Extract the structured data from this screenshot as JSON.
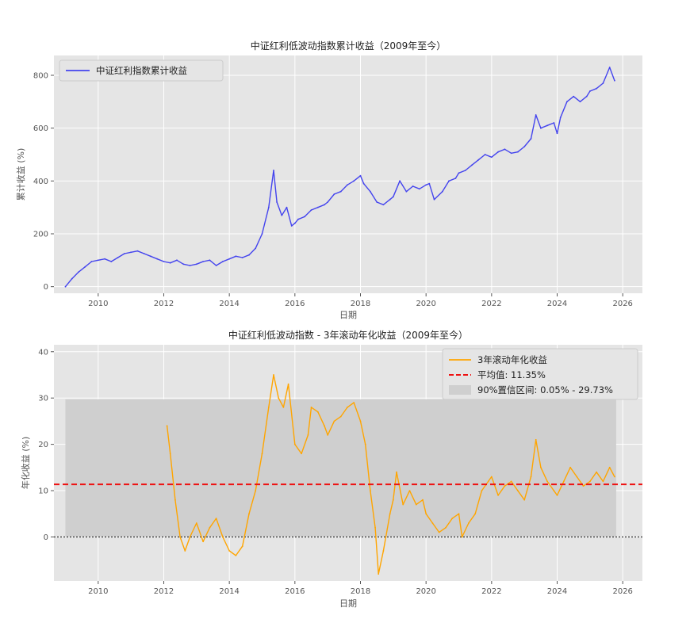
{
  "chart_data": [
    {
      "type": "line",
      "title": "中证红利低波动指数累计收益（2009年至今）",
      "xlabel": "日期",
      "ylabel": "累计收益 (%)",
      "xlim": [
        2008.65,
        2026.6
      ],
      "ylim": [
        -25,
        875
      ],
      "xticks": [
        2010,
        2012,
        2014,
        2016,
        2018,
        2020,
        2022,
        2024,
        2026
      ],
      "yticks": [
        0,
        200,
        400,
        600,
        800
      ],
      "grid": true,
      "legend_position": "top-left",
      "series": [
        {
          "name": "中证红利指数累计收益",
          "color": "#4444ee",
          "x": [
            2009.0,
            2009.2,
            2009.4,
            2009.6,
            2009.8,
            2010.0,
            2010.2,
            2010.4,
            2010.6,
            2010.8,
            2011.0,
            2011.2,
            2011.4,
            2011.6,
            2011.8,
            2012.0,
            2012.2,
            2012.4,
            2012.6,
            2012.8,
            2013.0,
            2013.2,
            2013.4,
            2013.6,
            2013.8,
            2014.0,
            2014.2,
            2014.4,
            2014.6,
            2014.8,
            2015.0,
            2015.2,
            2015.35,
            2015.45,
            2015.6,
            2015.75,
            2015.9,
            2016.0,
            2016.1,
            2016.3,
            2016.5,
            2016.7,
            2016.9,
            2017.0,
            2017.2,
            2017.4,
            2017.6,
            2017.8,
            2018.0,
            2018.1,
            2018.3,
            2018.5,
            2018.7,
            2018.9,
            2019.0,
            2019.2,
            2019.4,
            2019.6,
            2019.8,
            2020.0,
            2020.1,
            2020.25,
            2020.5,
            2020.7,
            2020.9,
            2021.0,
            2021.2,
            2021.4,
            2021.6,
            2021.8,
            2022.0,
            2022.2,
            2022.4,
            2022.6,
            2022.8,
            2023.0,
            2023.2,
            2023.35,
            2023.5,
            2023.7,
            2023.9,
            2024.0,
            2024.1,
            2024.3,
            2024.5,
            2024.7,
            2024.9,
            2025.0,
            2025.2,
            2025.4,
            2025.6,
            2025.75
          ],
          "values": [
            0,
            30,
            55,
            75,
            95,
            100,
            105,
            95,
            110,
            125,
            130,
            135,
            125,
            115,
            105,
            95,
            90,
            100,
            85,
            80,
            85,
            95,
            100,
            80,
            95,
            105,
            115,
            110,
            120,
            145,
            200,
            300,
            440,
            320,
            270,
            300,
            230,
            240,
            255,
            265,
            290,
            300,
            310,
            320,
            350,
            360,
            385,
            400,
            420,
            390,
            360,
            320,
            310,
            330,
            340,
            400,
            360,
            380,
            370,
            385,
            390,
            330,
            360,
            400,
            410,
            430,
            440,
            460,
            480,
            500,
            490,
            510,
            520,
            505,
            510,
            530,
            560,
            650,
            600,
            610,
            620,
            580,
            640,
            700,
            720,
            700,
            720,
            740,
            750,
            770,
            830,
            780
          ]
        }
      ]
    },
    {
      "type": "line",
      "title": "中证红利低波动指数 - 3年滚动年化收益（2009年至今）",
      "xlabel": "日期",
      "ylabel": "年化收益 (%)",
      "xlim": [
        2008.65,
        2026.6
      ],
      "ylim": [
        -9.5,
        41.5
      ],
      "xticks": [
        2010,
        2012,
        2014,
        2016,
        2018,
        2020,
        2022,
        2024,
        2026
      ],
      "yticks": [
        0,
        10,
        20,
        30,
        40
      ],
      "grid": true,
      "legend_position": "top-right",
      "mean": 11.35,
      "mean_color": "#ee1111",
      "zero_line_color": "#333333",
      "ci": [
        0.05,
        29.73
      ],
      "ci_x": [
        2009.0,
        2025.8
      ],
      "ci_color": "#cfcfcf",
      "series": [
        {
          "name": "3年滚动年化收益",
          "color": "#ffa500",
          "x": [
            2012.1,
            2012.2,
            2012.35,
            2012.5,
            2012.65,
            2012.8,
            2013.0,
            2013.2,
            2013.4,
            2013.6,
            2013.8,
            2014.0,
            2014.2,
            2014.4,
            2014.6,
            2014.8,
            2015.0,
            2015.2,
            2015.35,
            2015.5,
            2015.65,
            2015.8,
            2016.0,
            2016.2,
            2016.4,
            2016.5,
            2016.7,
            2016.9,
            2017.0,
            2017.2,
            2017.4,
            2017.6,
            2017.8,
            2018.0,
            2018.15,
            2018.3,
            2018.45,
            2018.55,
            2018.7,
            2018.9,
            2019.0,
            2019.1,
            2019.3,
            2019.5,
            2019.7,
            2019.9,
            2020.0,
            2020.2,
            2020.4,
            2020.6,
            2020.8,
            2021.0,
            2021.1,
            2021.3,
            2021.5,
            2021.7,
            2021.9,
            2022.0,
            2022.2,
            2022.4,
            2022.6,
            2022.8,
            2023.0,
            2023.2,
            2023.35,
            2023.5,
            2023.7,
            2023.9,
            2024.0,
            2024.2,
            2024.4,
            2024.6,
            2024.8,
            2025.0,
            2025.2,
            2025.4,
            2025.6,
            2025.75
          ],
          "values": [
            24,
            18,
            8,
            0,
            -3,
            0,
            3,
            -1,
            2,
            4,
            0,
            -3,
            -4,
            -2,
            5,
            10,
            18,
            28,
            35,
            30,
            28,
            33,
            20,
            18,
            22,
            28,
            27,
            24,
            22,
            25,
            26,
            28,
            29,
            25,
            20,
            10,
            2,
            -8,
            -3,
            5,
            8,
            14,
            7,
            10,
            7,
            8,
            5,
            3,
            1,
            2,
            4,
            5,
            0,
            3,
            5,
            10,
            12,
            13,
            9,
            11,
            12,
            10,
            8,
            13,
            21,
            15,
            12,
            10,
            9,
            12,
            15,
            13,
            11,
            12,
            14,
            12,
            15,
            13
          ]
        }
      ],
      "legend": {
        "line_label": "3年滚动年化收益",
        "mean_label": "平均值: 11.35%",
        "ci_label": "90%置信区间: 0.05% - 29.73%"
      }
    }
  ]
}
